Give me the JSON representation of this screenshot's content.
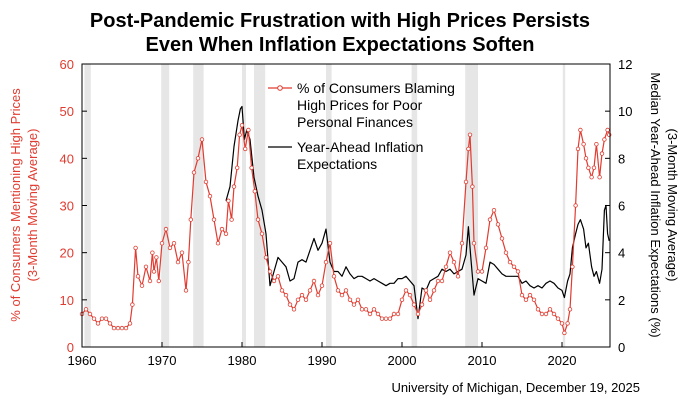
{
  "chart_data": {
    "type": "line",
    "title": "Post-Pandemic Frustration with High Prices Persists",
    "subtitle": "Even When Inflation Expectations Soften",
    "source": "University of Michigan, December 19, 2025",
    "ylabel_left": "% of Consumers Mentioning High Prices",
    "ylabel_left2": "(3-Month Moving Average)",
    "ylabel_right": "Median Year-Ahead Inflation Expectations (%)",
    "ylabel_right2": "(3-Month Moving Average)",
    "xlim": [
      1960,
      2026
    ],
    "ylim_left": [
      0,
      60
    ],
    "ylim_right": [
      0,
      12
    ],
    "x_ticks": [
      "1960",
      "1970",
      "1980",
      "1990",
      "2000",
      "2010",
      "2020"
    ],
    "y_ticks_left": [
      "0",
      "10",
      "20",
      "30",
      "40",
      "50",
      "60"
    ],
    "y_ticks_right": [
      "0",
      "2",
      "4",
      "6",
      "8",
      "10",
      "12"
    ],
    "recessions": [
      [
        1960.3,
        1961.1
      ],
      [
        1969.9,
        1970.9
      ],
      [
        1973.9,
        1975.2
      ],
      [
        1980.0,
        1980.5
      ],
      [
        1981.5,
        1982.9
      ],
      [
        1990.5,
        1991.2
      ],
      [
        2001.2,
        2001.9
      ],
      [
        2007.9,
        2009.5
      ],
      [
        2020.1,
        2020.4
      ]
    ],
    "series": [
      {
        "name": "% of Consumers Blaming High Prices for Poor Personal Finances",
        "name_lines": [
          "% of Consumers Blaming",
          "High Prices for Poor",
          "Personal Finances"
        ],
        "axis": "left",
        "color": "#e03c31",
        "points": [
          [
            1960.0,
            7
          ],
          [
            1960.5,
            8
          ],
          [
            1961.0,
            7
          ],
          [
            1961.5,
            6
          ],
          [
            1962.0,
            5
          ],
          [
            1962.5,
            6
          ],
          [
            1963.0,
            6
          ],
          [
            1963.5,
            5
          ],
          [
            1964.0,
            4
          ],
          [
            1964.5,
            4
          ],
          [
            1965.0,
            4
          ],
          [
            1965.5,
            4
          ],
          [
            1966.0,
            5
          ],
          [
            1966.3,
            9
          ],
          [
            1966.7,
            21
          ],
          [
            1967.0,
            15
          ],
          [
            1967.5,
            13
          ],
          [
            1968.0,
            17
          ],
          [
            1968.5,
            14
          ],
          [
            1968.8,
            20
          ],
          [
            1969.0,
            16
          ],
          [
            1969.3,
            19
          ],
          [
            1969.6,
            14
          ],
          [
            1970.0,
            22
          ],
          [
            1970.5,
            25
          ],
          [
            1971.0,
            21
          ],
          [
            1971.5,
            22
          ],
          [
            1972.0,
            18
          ],
          [
            1972.5,
            20
          ],
          [
            1973.0,
            12
          ],
          [
            1973.3,
            18
          ],
          [
            1973.6,
            27
          ],
          [
            1974.0,
            37
          ],
          [
            1974.5,
            40
          ],
          [
            1975.0,
            44
          ],
          [
            1975.5,
            35
          ],
          [
            1976.0,
            32
          ],
          [
            1976.5,
            27
          ],
          [
            1977.0,
            22
          ],
          [
            1977.5,
            25
          ],
          [
            1978.0,
            24
          ],
          [
            1978.3,
            31
          ],
          [
            1978.7,
            27
          ],
          [
            1979.0,
            34
          ],
          [
            1979.4,
            38
          ],
          [
            1979.7,
            45
          ],
          [
            1980.0,
            47
          ],
          [
            1980.4,
            42
          ],
          [
            1980.8,
            46
          ],
          [
            1981.2,
            38
          ],
          [
            1981.6,
            33
          ],
          [
            1982.0,
            27
          ],
          [
            1982.5,
            24
          ],
          [
            1983.0,
            19
          ],
          [
            1983.5,
            16
          ],
          [
            1984.0,
            14
          ],
          [
            1984.5,
            15
          ],
          [
            1985.0,
            12
          ],
          [
            1985.5,
            11
          ],
          [
            1986.0,
            9
          ],
          [
            1986.5,
            8
          ],
          [
            1987.0,
            10
          ],
          [
            1987.5,
            11
          ],
          [
            1988.0,
            10
          ],
          [
            1988.5,
            12
          ],
          [
            1989.0,
            14
          ],
          [
            1989.5,
            11
          ],
          [
            1990.0,
            13
          ],
          [
            1990.5,
            18
          ],
          [
            1991.0,
            22
          ],
          [
            1991.5,
            15
          ],
          [
            1992.0,
            12
          ],
          [
            1992.5,
            11
          ],
          [
            1993.0,
            12
          ],
          [
            1993.5,
            10
          ],
          [
            1994.0,
            9
          ],
          [
            1994.5,
            10
          ],
          [
            1995.0,
            8
          ],
          [
            1995.5,
            8
          ],
          [
            1996.0,
            7
          ],
          [
            1996.5,
            8
          ],
          [
            1997.0,
            7
          ],
          [
            1997.5,
            6
          ],
          [
            1998.0,
            6
          ],
          [
            1998.5,
            6
          ],
          [
            1999.0,
            7
          ],
          [
            1999.5,
            7
          ],
          [
            2000.0,
            10
          ],
          [
            2000.5,
            12
          ],
          [
            2001.0,
            11
          ],
          [
            2001.5,
            9
          ],
          [
            2002.0,
            7
          ],
          [
            2002.5,
            9
          ],
          [
            2003.0,
            12
          ],
          [
            2003.5,
            10
          ],
          [
            2004.0,
            12
          ],
          [
            2004.5,
            14
          ],
          [
            2005.0,
            14
          ],
          [
            2005.5,
            17
          ],
          [
            2006.0,
            20
          ],
          [
            2006.5,
            18
          ],
          [
            2007.0,
            15
          ],
          [
            2007.5,
            22
          ],
          [
            2008.0,
            35
          ],
          [
            2008.3,
            42
          ],
          [
            2008.5,
            45
          ],
          [
            2008.8,
            34
          ],
          [
            2009.0,
            22
          ],
          [
            2009.5,
            16
          ],
          [
            2010.0,
            16
          ],
          [
            2010.5,
            21
          ],
          [
            2011.0,
            27
          ],
          [
            2011.5,
            29
          ],
          [
            2012.0,
            26
          ],
          [
            2012.5,
            23
          ],
          [
            2013.0,
            20
          ],
          [
            2013.5,
            18
          ],
          [
            2014.0,
            17
          ],
          [
            2014.5,
            16
          ],
          [
            2015.0,
            11
          ],
          [
            2015.5,
            10
          ],
          [
            2016.0,
            11
          ],
          [
            2016.5,
            10
          ],
          [
            2017.0,
            8
          ],
          [
            2017.5,
            7
          ],
          [
            2018.0,
            7
          ],
          [
            2018.5,
            8
          ],
          [
            2019.0,
            7
          ],
          [
            2019.5,
            6
          ],
          [
            2020.0,
            5
          ],
          [
            2020.3,
            3
          ],
          [
            2020.7,
            5
          ],
          [
            2021.0,
            8
          ],
          [
            2021.3,
            17
          ],
          [
            2021.7,
            30
          ],
          [
            2022.0,
            42
          ],
          [
            2022.3,
            46
          ],
          [
            2022.7,
            43
          ],
          [
            2023.0,
            40
          ],
          [
            2023.3,
            38
          ],
          [
            2023.7,
            36
          ],
          [
            2024.0,
            38
          ],
          [
            2024.3,
            43
          ],
          [
            2024.7,
            36
          ],
          [
            2025.0,
            41
          ],
          [
            2025.3,
            44
          ],
          [
            2025.7,
            46
          ],
          [
            2025.9,
            45
          ]
        ]
      },
      {
        "name": "Year-Ahead Inflation Expectations",
        "name_lines": [
          "Year-Ahead Inflation",
          "Expectations"
        ],
        "axis": "right",
        "color": "#000000",
        "points": [
          [
            1978.0,
            6.2
          ],
          [
            1978.5,
            6.8
          ],
          [
            1979.0,
            8.5
          ],
          [
            1979.5,
            9.6
          ],
          [
            1979.8,
            10.1
          ],
          [
            1980.0,
            10.2
          ],
          [
            1980.3,
            8.8
          ],
          [
            1980.6,
            9.2
          ],
          [
            1981.0,
            8.8
          ],
          [
            1981.5,
            7.2
          ],
          [
            1982.0,
            6.4
          ],
          [
            1982.5,
            5.8
          ],
          [
            1983.0,
            4.8
          ],
          [
            1983.5,
            2.6
          ],
          [
            1984.0,
            3.2
          ],
          [
            1984.5,
            3.8
          ],
          [
            1985.0,
            3.6
          ],
          [
            1985.5,
            3.4
          ],
          [
            1986.0,
            2.8
          ],
          [
            1986.5,
            2.9
          ],
          [
            1987.0,
            3.6
          ],
          [
            1987.5,
            3.7
          ],
          [
            1988.0,
            3.6
          ],
          [
            1988.5,
            4.1
          ],
          [
            1989.0,
            4.6
          ],
          [
            1989.5,
            4.1
          ],
          [
            1990.0,
            4.4
          ],
          [
            1990.5,
            5.0
          ],
          [
            1991.0,
            3.6
          ],
          [
            1991.5,
            3.2
          ],
          [
            1992.0,
            3.2
          ],
          [
            1992.5,
            3.0
          ],
          [
            1993.0,
            3.4
          ],
          [
            1993.5,
            3.1
          ],
          [
            1994.0,
            2.9
          ],
          [
            1994.5,
            3.0
          ],
          [
            1995.0,
            3.0
          ],
          [
            1995.5,
            2.9
          ],
          [
            1996.0,
            2.8
          ],
          [
            1996.5,
            2.9
          ],
          [
            1997.0,
            2.8
          ],
          [
            1997.5,
            2.7
          ],
          [
            1998.0,
            2.6
          ],
          [
            1998.5,
            2.7
          ],
          [
            1999.0,
            2.7
          ],
          [
            1999.5,
            2.9
          ],
          [
            2000.0,
            2.9
          ],
          [
            2000.5,
            3.0
          ],
          [
            2001.0,
            2.8
          ],
          [
            2001.5,
            2.6
          ],
          [
            2002.0,
            1.2
          ],
          [
            2002.5,
            2.5
          ],
          [
            2003.0,
            2.4
          ],
          [
            2003.5,
            2.8
          ],
          [
            2004.0,
            2.9
          ],
          [
            2004.5,
            3.0
          ],
          [
            2005.0,
            3.3
          ],
          [
            2005.5,
            3.2
          ],
          [
            2006.0,
            3.3
          ],
          [
            2006.5,
            3.1
          ],
          [
            2007.0,
            3.2
          ],
          [
            2007.5,
            3.3
          ],
          [
            2008.0,
            3.9
          ],
          [
            2008.3,
            5.1
          ],
          [
            2008.6,
            3.8
          ],
          [
            2009.0,
            2.2
          ],
          [
            2009.5,
            2.9
          ],
          [
            2010.0,
            2.8
          ],
          [
            2010.5,
            2.7
          ],
          [
            2011.0,
            3.6
          ],
          [
            2011.5,
            3.5
          ],
          [
            2012.0,
            3.3
          ],
          [
            2012.5,
            3.1
          ],
          [
            2013.0,
            3.0
          ],
          [
            2013.5,
            3.0
          ],
          [
            2014.0,
            3.0
          ],
          [
            2014.5,
            3.0
          ],
          [
            2015.0,
            2.7
          ],
          [
            2015.5,
            2.8
          ],
          [
            2016.0,
            2.6
          ],
          [
            2016.5,
            2.5
          ],
          [
            2017.0,
            2.6
          ],
          [
            2017.5,
            2.5
          ],
          [
            2018.0,
            2.7
          ],
          [
            2018.5,
            2.8
          ],
          [
            2019.0,
            2.7
          ],
          [
            2019.5,
            2.5
          ],
          [
            2020.0,
            2.4
          ],
          [
            2020.3,
            2.1
          ],
          [
            2020.7,
            2.8
          ],
          [
            2021.0,
            3.1
          ],
          [
            2021.3,
            4.2
          ],
          [
            2021.7,
            4.8
          ],
          [
            2022.0,
            5.2
          ],
          [
            2022.3,
            5.4
          ],
          [
            2022.7,
            5.0
          ],
          [
            2023.0,
            4.2
          ],
          [
            2023.3,
            4.4
          ],
          [
            2023.7,
            3.4
          ],
          [
            2024.0,
            3.0
          ],
          [
            2024.3,
            3.2
          ],
          [
            2024.7,
            2.7
          ],
          [
            2025.0,
            3.3
          ],
          [
            2025.3,
            5.8
          ],
          [
            2025.5,
            6.0
          ],
          [
            2025.7,
            4.8
          ],
          [
            2025.9,
            4.5
          ]
        ]
      }
    ]
  }
}
